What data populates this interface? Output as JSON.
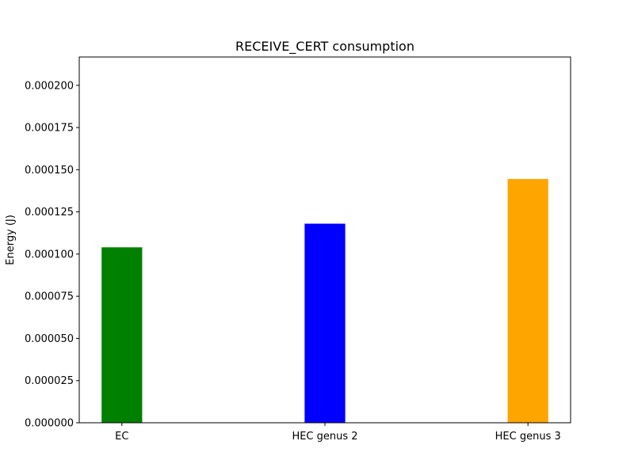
{
  "chart_data": {
    "type": "bar",
    "title": "RECEIVE_CERT consumption",
    "xlabel": "",
    "ylabel": "Energy (J)",
    "categories": [
      "EC",
      "HEC genus 2",
      "HEC genus 3"
    ],
    "values": [
      0.000104,
      0.000118,
      0.0001445
    ],
    "colors": [
      "#008000",
      "#0000ff",
      "#ffa500"
    ],
    "ylim": [
      0,
      0.0002168
    ],
    "yticks": [
      "0.000000",
      "0.000025",
      "0.000050",
      "0.000075",
      "0.000100",
      "0.000125",
      "0.000150",
      "0.000175",
      "0.000200"
    ],
    "grid": false,
    "legend": "none"
  }
}
